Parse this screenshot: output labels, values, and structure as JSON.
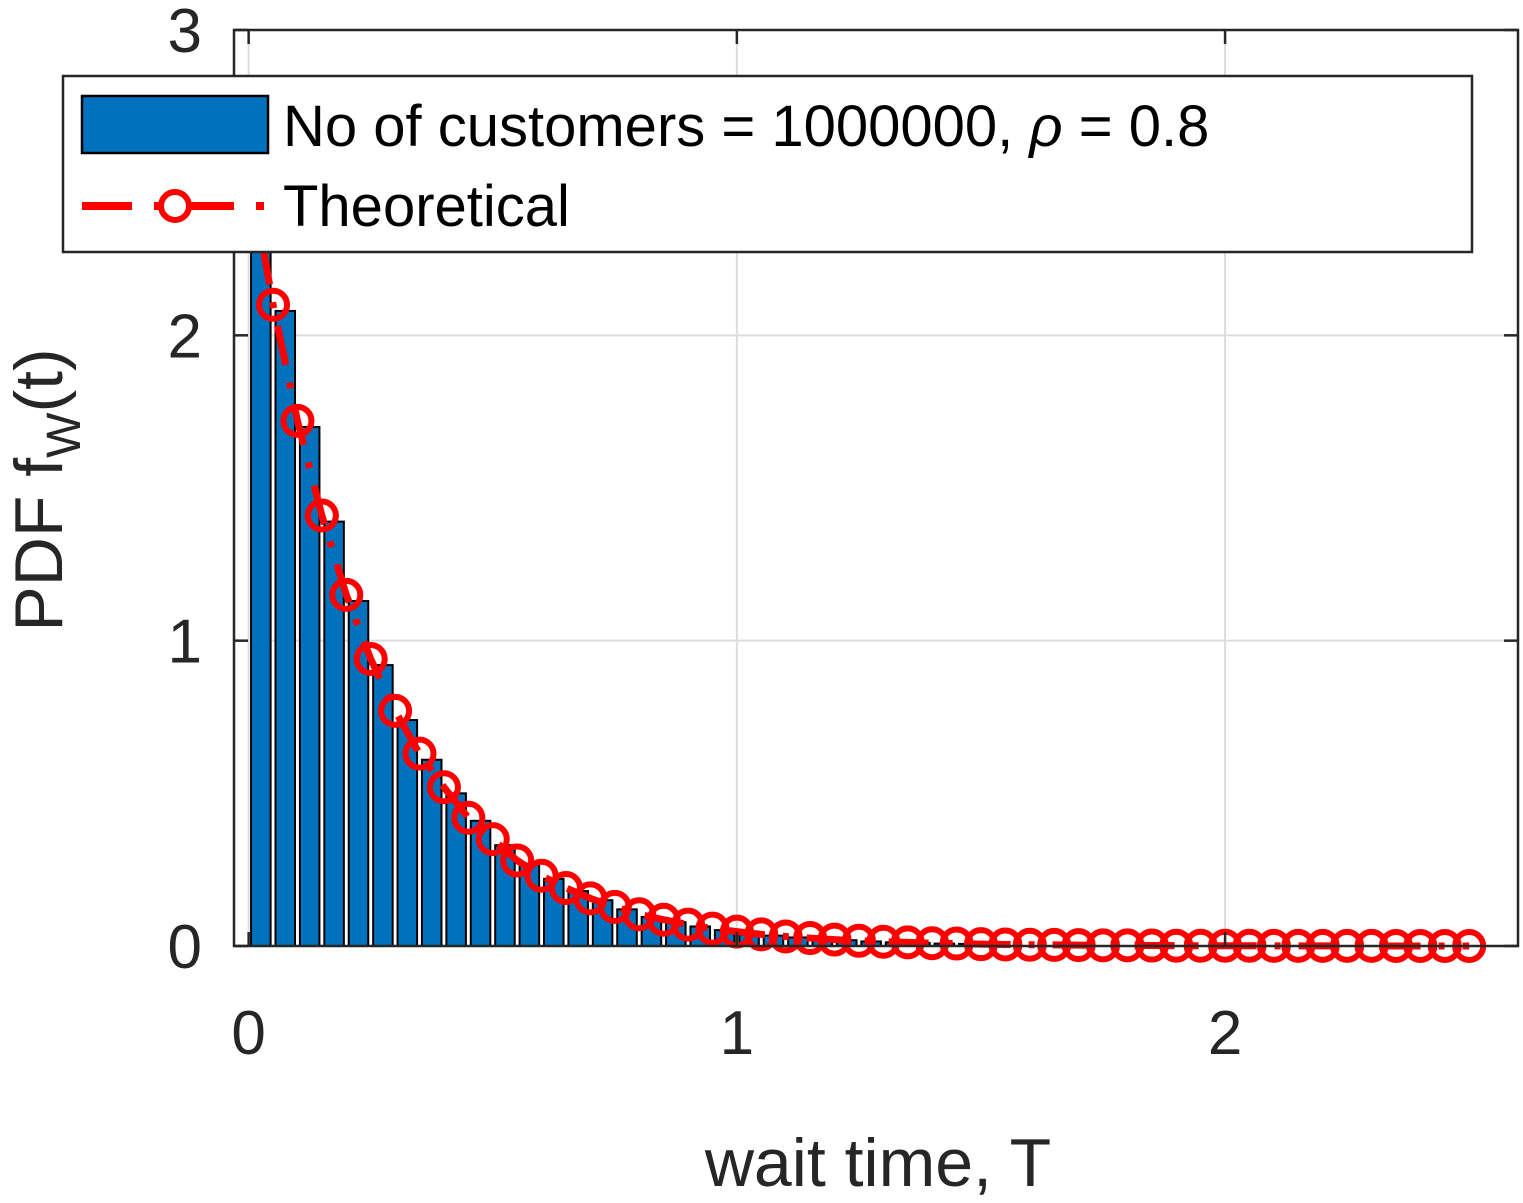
{
  "chart_data": {
    "type": "bar",
    "xlabel": "wait time, T",
    "ylabel": {
      "main": "PDF f",
      "subscript": "W",
      "suffix": "(t)"
    },
    "xlim": [
      -0.03,
      2.6
    ],
    "ylim": [
      0,
      3
    ],
    "xticks": [
      "0",
      "1",
      "2"
    ],
    "yticks": [
      "0",
      "1",
      "2",
      "3"
    ],
    "grid": true,
    "legend": {
      "placement": "top",
      "entries": [
        {
          "prefix": "No of customers = 1000000, ",
          "symbol": "ρ",
          "suffix": " = 0.8"
        },
        {
          "text": "Theoretical"
        }
      ]
    },
    "colors": {
      "bar_fill": "#0072BD",
      "bar_edge": "#000000",
      "theory_line": "#FF0000",
      "grid": "#dcdcdc",
      "axis": "#262626"
    },
    "series": [
      {
        "name": "No of customers = 1000000, ρ = 0.8",
        "kind": "histogram",
        "bin_width": 0.05,
        "x": [
          0.025,
          0.075,
          0.125,
          0.175,
          0.225,
          0.275,
          0.325,
          0.375,
          0.425,
          0.475,
          0.525,
          0.575,
          0.625,
          0.675,
          0.725,
          0.775,
          0.825,
          0.875,
          0.925,
          0.975,
          1.025,
          1.075,
          1.125,
          1.175,
          1.225,
          1.275,
          1.325,
          1.375,
          1.425,
          1.475
        ],
        "values": [
          2.3,
          2.08,
          1.7,
          1.39,
          1.13,
          0.92,
          0.74,
          0.61,
          0.5,
          0.41,
          0.33,
          0.27,
          0.22,
          0.18,
          0.15,
          0.12,
          0.095,
          0.078,
          0.064,
          0.052,
          0.042,
          0.034,
          0.028,
          0.023,
          0.019,
          0.015,
          0.012,
          0.01,
          0.008,
          0.007
        ]
      },
      {
        "name": "Theoretical",
        "kind": "line",
        "style": "dash-dot with circle markers",
        "x": [
          0.0,
          0.05,
          0.1,
          0.15,
          0.2,
          0.25,
          0.3,
          0.35,
          0.4,
          0.45,
          0.5,
          0.55,
          0.6,
          0.65,
          0.7,
          0.75,
          0.8,
          0.85,
          0.9,
          0.95,
          1.0,
          1.05,
          1.1,
          1.15,
          1.2,
          1.25,
          1.3,
          1.35,
          1.4,
          1.45,
          1.5,
          1.55,
          1.6,
          1.65,
          1.7,
          1.75,
          1.8,
          1.85,
          1.9,
          1.95,
          2.0,
          2.05,
          2.1,
          2.15,
          2.2,
          2.25,
          2.3,
          2.35,
          2.4,
          2.45,
          2.5
        ],
        "values": [
          2.56,
          2.1,
          1.72,
          1.41,
          1.15,
          0.94,
          0.77,
          0.63,
          0.52,
          0.42,
          0.35,
          0.28,
          0.23,
          0.19,
          0.156,
          0.128,
          0.104,
          0.086,
          0.07,
          0.057,
          0.047,
          0.038,
          0.031,
          0.026,
          0.021,
          0.017,
          0.014,
          0.012,
          0.009,
          0.008,
          0.006,
          0.005,
          0.004,
          0.0035,
          0.003,
          0.002,
          0.002,
          0.0015,
          0.001,
          0.001,
          0.001,
          0.0008,
          0.0006,
          0.0005,
          0.0004,
          0.0003,
          0.0003,
          0.0002,
          0.0002,
          0.0001,
          0.0001
        ]
      }
    ]
  }
}
